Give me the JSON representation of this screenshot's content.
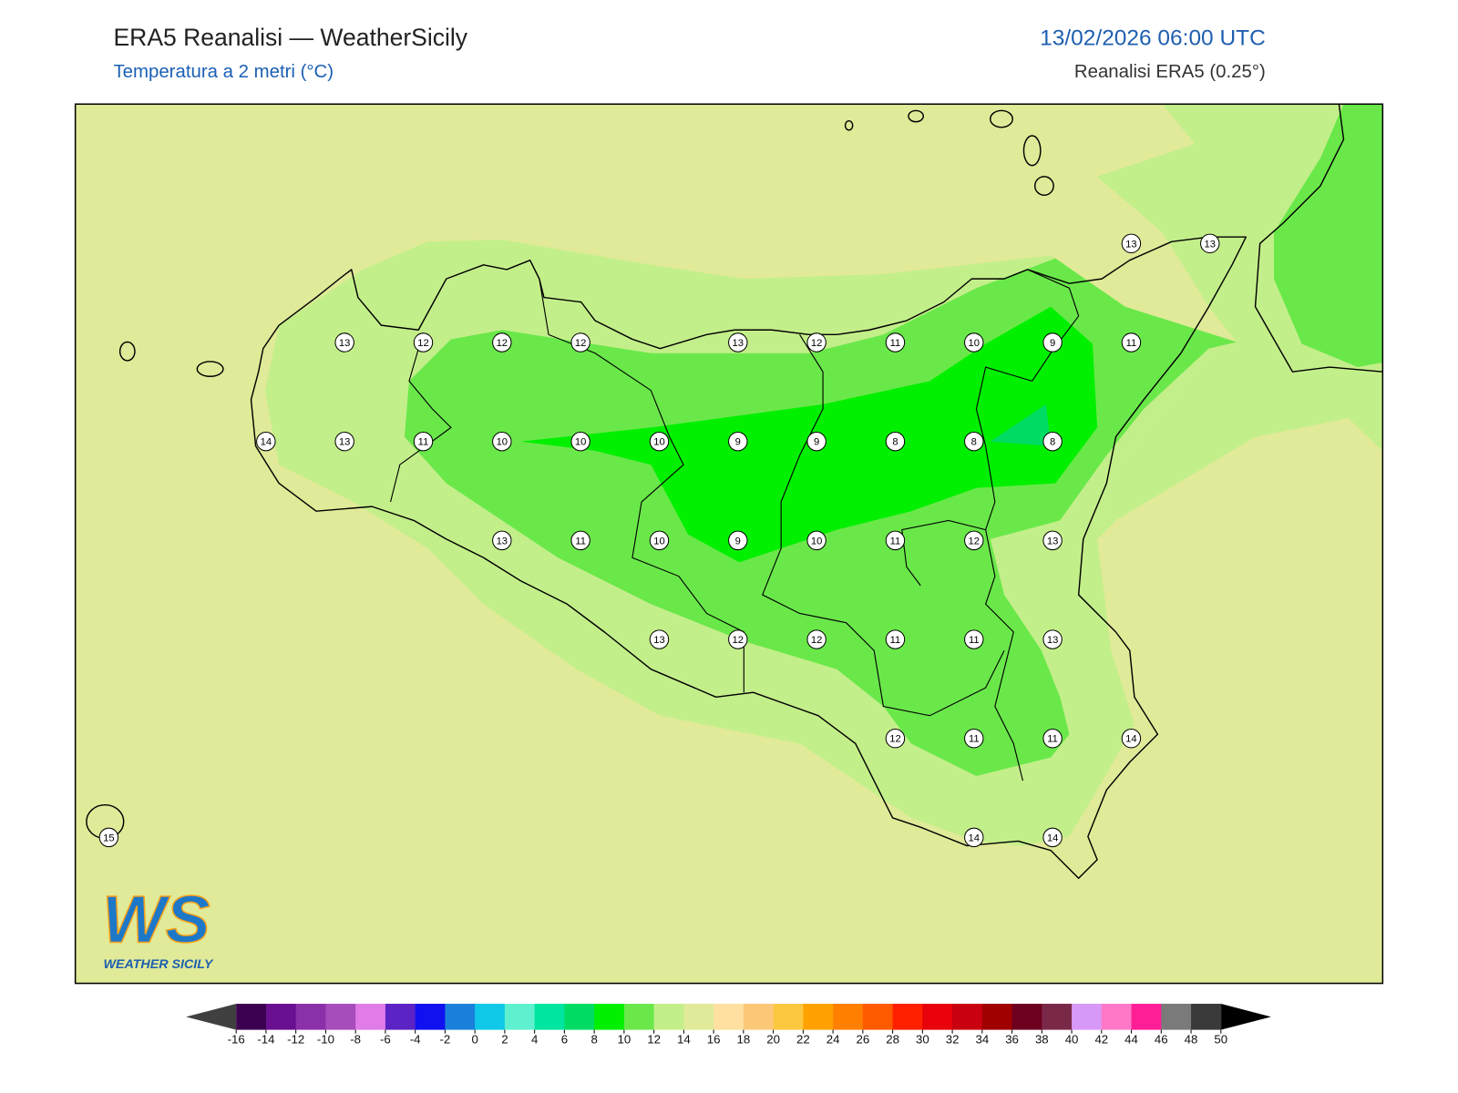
{
  "header": {
    "title": "ERA5 Reanalisi — WeatherSicily",
    "subtitle": "Temperatura a 2 metri (°C)",
    "datetime": "13/02/2026 06:00 UTC",
    "source": "Reanalisi ERA5 (0.25°)"
  },
  "stations": [
    13,
    13,
    13,
    12,
    12,
    12,
    13,
    12,
    11,
    10,
    9,
    11,
    14,
    13,
    11,
    10,
    10,
    10,
    9,
    9,
    8,
    8,
    8,
    13,
    11,
    10,
    9,
    10,
    11,
    12,
    13,
    13,
    12,
    12,
    11,
    11,
    13,
    12,
    11,
    11,
    14,
    15,
    14,
    14
  ],
  "colorbar": {
    "ticks": [
      -16,
      -14,
      -12,
      -10,
      -8,
      -6,
      -4,
      -2,
      0,
      2,
      4,
      6,
      8,
      10,
      12,
      14,
      16,
      18,
      20,
      22,
      24,
      26,
      28,
      30,
      32,
      34,
      36,
      38,
      40,
      42,
      44,
      46,
      48,
      50
    ],
    "colors": [
      "#3c0050",
      "#6a0f8f",
      "#8a30a8",
      "#a64cbb",
      "#e07be8",
      "#5b22c4",
      "#1010f0",
      "#1a80dc",
      "#10c8e8",
      "#5ff0d0",
      "#00e6a0",
      "#00dc64",
      "#00f000",
      "#6ae84a",
      "#c3ef8a",
      "#e0ea98",
      "#ffe0a0",
      "#fcc878",
      "#fcc840",
      "#ffa200",
      "#ff8000",
      "#ff5a00",
      "#ff2000",
      "#e8000a",
      "#c80010",
      "#a00000",
      "#6e0020",
      "#7a2848",
      "#d898f8",
      "#ff78c8",
      "#ff1e96",
      "#7a7a7a",
      "#3a3a3a"
    ],
    "under": "#404040",
    "over": "#000000"
  },
  "logo": {
    "mark": "WS",
    "text": "WEATHER SICILY"
  }
}
